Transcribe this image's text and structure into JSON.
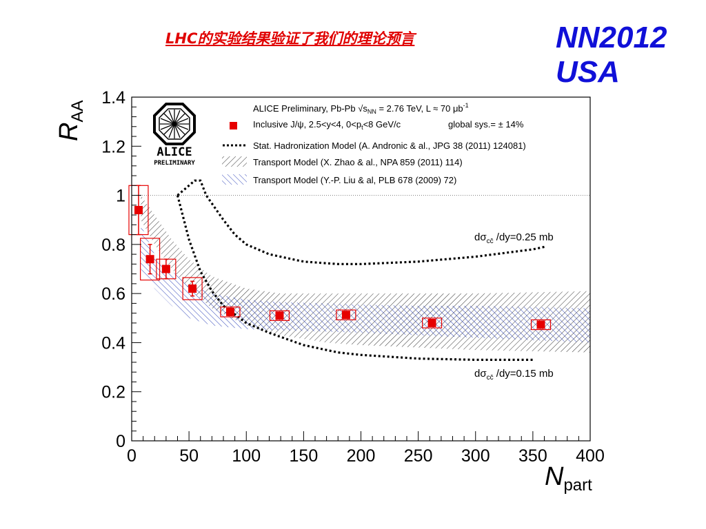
{
  "slide": {
    "title": "LHC的实验结果验证了我们的理论预言",
    "conference": "NN2012",
    "country": "USA"
  },
  "logo": {
    "name": "ALICE",
    "subtitle": "PRELIMINARY"
  },
  "colors": {
    "title": "#e00000",
    "conference": "#1010d8",
    "data": "#e60000",
    "zhao_band": "#333333",
    "liu_band": "#2a3fb8",
    "stat_model": "#000000"
  },
  "chart_data": {
    "type": "scatter",
    "xlabel": "N",
    "xlabel_sub": "part",
    "ylabel": "R",
    "ylabel_sub": "AA",
    "xlim": [
      0,
      400
    ],
    "ylim": [
      0,
      1.4
    ],
    "xticks": [
      0,
      50,
      100,
      150,
      200,
      250,
      300,
      350,
      400
    ],
    "yticks": [
      0,
      0.2,
      0.4,
      0.6,
      0.8,
      1,
      1.2,
      1.4
    ],
    "xtick_labels": [
      "0",
      "50",
      "100",
      "150",
      "200",
      "250",
      "300",
      "350",
      "400"
    ],
    "ytick_labels": [
      "0",
      "0.2",
      "0.4",
      "0.6",
      "0.8",
      "1",
      "1.2",
      "1.4"
    ],
    "reference_line_y": 1,
    "legend": {
      "header": "ALICE Preliminary, Pb-Pb √s",
      "header_sub": "NN",
      "header_tail": " = 2.76 TeV, L ≈ 70 μb",
      "header_sup": "-1",
      "entries": [
        "Inclusive J/ψ, 2.5<y<4, 0<p",
        "Stat. Hadronization Model (A. Andronic & al., JPG 38 (2011) 124081)",
        "Transport Model (X. Zhao & al., NPA 859 (2011) 114)",
        "Transport Model (Y.-P. Liu & al, PLB 678 (2009) 72)"
      ],
      "data_entry_sub": "t",
      "data_entry_tail": "<8 GeV/c",
      "global_sys": "global sys.= ± 14%"
    },
    "annotations": {
      "upper_prefix": "dσ",
      "upper_sub": "cc̄",
      "upper_tail": " /dy=0.25 mb",
      "lower_prefix": "dσ",
      "lower_sub": "cc̄",
      "lower_tail": " /dy=0.15 mb"
    },
    "series": [
      {
        "name": "Inclusive J/ψ",
        "x": [
          6,
          16,
          30,
          53,
          86,
          129,
          187,
          262,
          357
        ],
        "y": [
          0.94,
          0.74,
          0.7,
          0.62,
          0.525,
          0.51,
          0.513,
          0.48,
          0.473
        ],
        "stat_err": [
          0.1,
          0.06,
          0.04,
          0.03,
          0.015,
          0.012,
          0.012,
          0.012,
          0.012
        ],
        "sys_err": [
          0.1,
          0.085,
          0.04,
          0.045,
          0.02,
          0.02,
          0.02,
          0.02,
          0.02
        ],
        "sys_width": [
          6,
          6,
          6,
          6,
          6,
          6,
          6,
          6,
          6
        ]
      }
    ],
    "stat_model_upper": {
      "x": [
        40,
        55,
        60,
        65,
        80,
        90,
        100,
        120,
        150,
        180,
        200,
        250,
        300,
        350,
        360
      ],
      "y": [
        1.0,
        1.06,
        1.06,
        1.0,
        0.9,
        0.84,
        0.8,
        0.76,
        0.73,
        0.72,
        0.72,
        0.73,
        0.75,
        0.78,
        0.79
      ]
    },
    "stat_model_lower": {
      "x": [
        40,
        50,
        60,
        70,
        80,
        100,
        120,
        150,
        180,
        200,
        250,
        300,
        350
      ],
      "y": [
        1.0,
        0.82,
        0.69,
        0.61,
        0.55,
        0.48,
        0.44,
        0.39,
        0.36,
        0.35,
        0.335,
        0.33,
        0.33
      ]
    },
    "zhao_band": {
      "x": [
        8,
        20,
        35,
        50,
        70,
        100,
        130,
        170,
        200,
        250,
        300,
        350,
        400
      ],
      "upper": [
        1.0,
        0.92,
        0.82,
        0.74,
        0.67,
        0.62,
        0.6,
        0.6,
        0.6,
        0.6,
        0.6,
        0.605,
        0.61
      ],
      "lower": [
        0.9,
        0.8,
        0.7,
        0.62,
        0.54,
        0.47,
        0.43,
        0.4,
        0.39,
        0.38,
        0.37,
        0.365,
        0.36
      ]
    },
    "liu_band": {
      "x": [
        8,
        20,
        35,
        50,
        70,
        100,
        130,
        170,
        200,
        250,
        300,
        350,
        400
      ],
      "upper": [
        0.88,
        0.76,
        0.69,
        0.64,
        0.6,
        0.575,
        0.565,
        0.56,
        0.555,
        0.55,
        0.55,
        0.545,
        0.54
      ],
      "lower": [
        0.7,
        0.62,
        0.55,
        0.5,
        0.47,
        0.455,
        0.45,
        0.445,
        0.44,
        0.43,
        0.42,
        0.41,
        0.4
      ]
    }
  }
}
